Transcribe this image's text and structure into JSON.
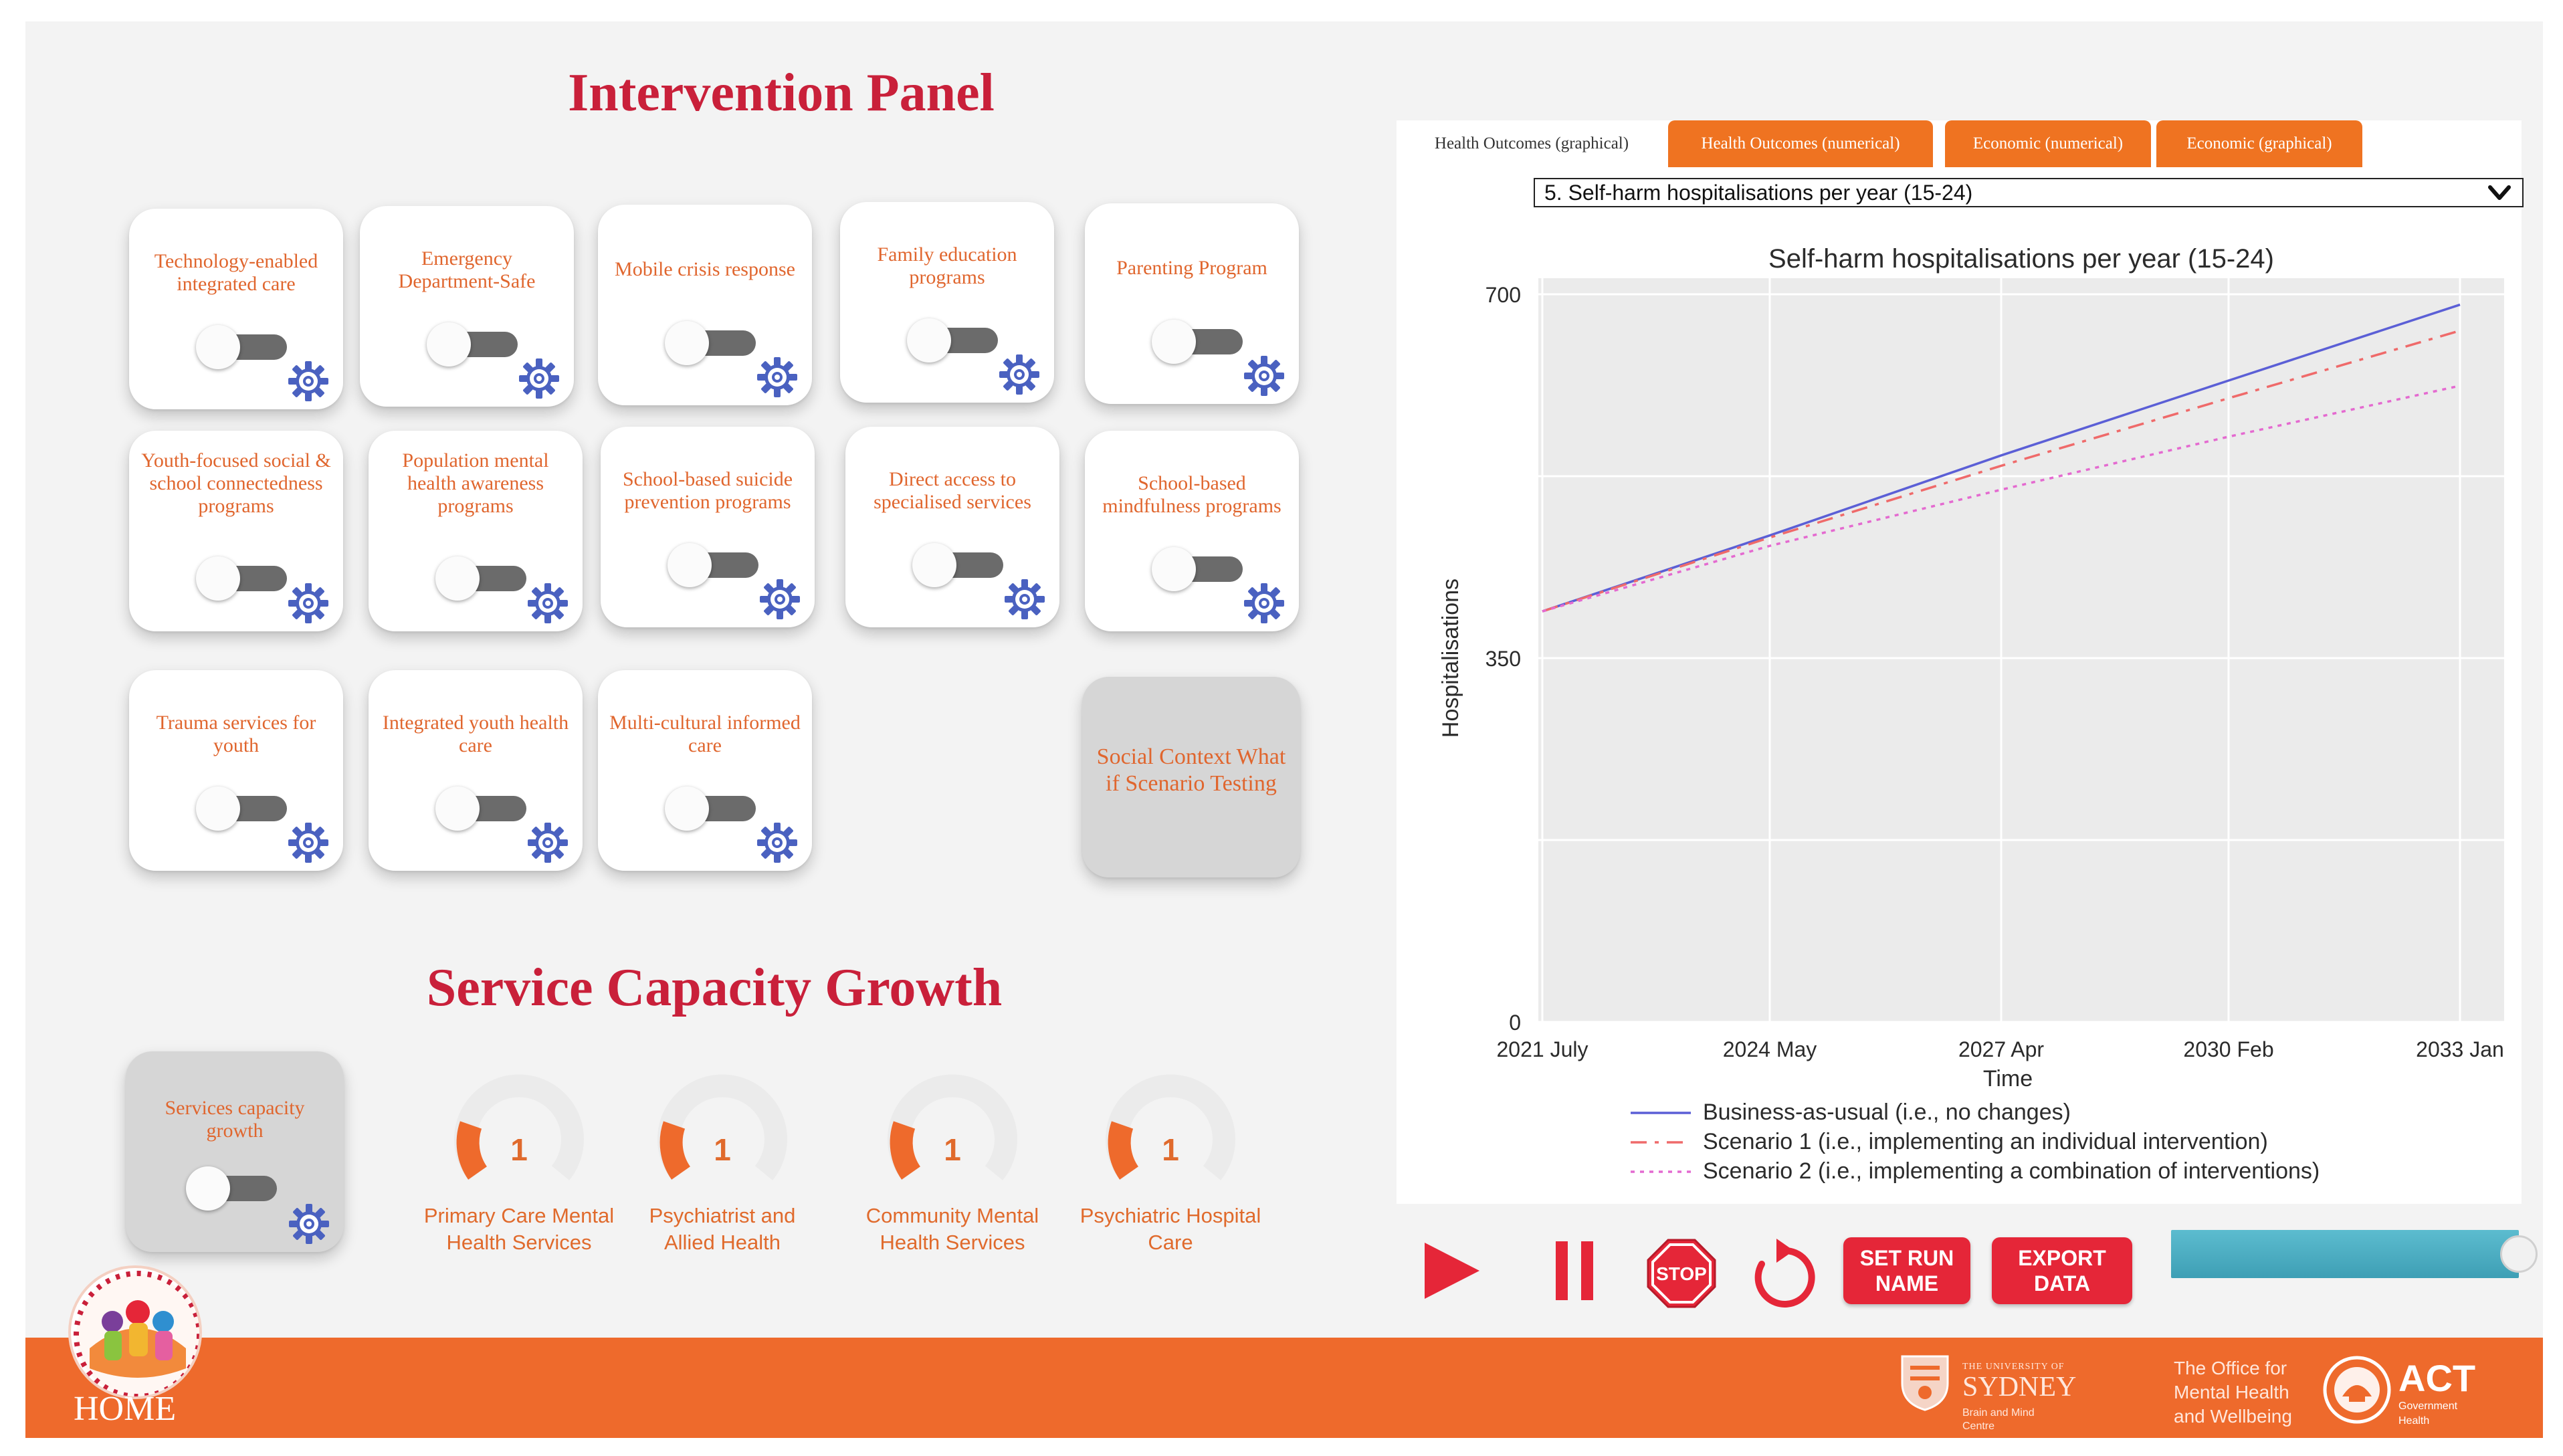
{
  "intervention_panel": {
    "title": "Intervention Panel",
    "cards": [
      {
        "label": "Technology-enabled integrated care",
        "enabled": false
      },
      {
        "label": "Emergency Department-Safe",
        "enabled": false
      },
      {
        "label": "Mobile crisis response",
        "enabled": false
      },
      {
        "label": "Family education programs",
        "enabled": false
      },
      {
        "label": "Parenting Program",
        "enabled": false
      },
      {
        "label": "Youth-focused social & school connectedness programs",
        "enabled": false
      },
      {
        "label": "Population mental health awareness programs",
        "enabled": false
      },
      {
        "label": "School-based suicide prevention programs",
        "enabled": false
      },
      {
        "label": "Direct access to specialised services",
        "enabled": false
      },
      {
        "label": "School-based mindfulness programs",
        "enabled": false
      },
      {
        "label": "Trauma services for youth",
        "enabled": false
      },
      {
        "label": "Integrated youth health care",
        "enabled": false
      },
      {
        "label": "Multi-cultural informed care",
        "enabled": false
      }
    ],
    "social_context": {
      "label": "Social Context What if Scenario Testing"
    }
  },
  "service_capacity": {
    "title": "Service Capacity Growth",
    "toggle_card": {
      "label": "Services capacity growth",
      "enabled": false
    },
    "gauges": [
      {
        "value": "1",
        "label": "Primary Care Mental Health Services"
      },
      {
        "value": "1",
        "label": "Psychiatrist and Allied Health"
      },
      {
        "value": "1",
        "label": "Community Mental Health Services"
      },
      {
        "value": "1",
        "label": "Psychiatric Hospital Care"
      }
    ]
  },
  "tabs": [
    {
      "label": "Health Outcomes (graphical)",
      "active": true
    },
    {
      "label": "Health Outcomes (numerical)",
      "active": false
    },
    {
      "label": "Economic (numerical)",
      "active": false
    },
    {
      "label": "Economic (graphical)",
      "active": false
    }
  ],
  "metric_select": {
    "selected": "5. Self-harm hospitalisations per year (15-24)"
  },
  "chart_data": {
    "type": "line",
    "title": "Self-harm hospitalisations per year (15-24)",
    "xlabel": "Time",
    "ylabel": "Hospitalisations",
    "x_ticks": [
      "2021 July",
      "2024 May",
      "2027 Apr",
      "2030 Feb",
      "2033 Jan"
    ],
    "y_ticks": [
      0,
      350,
      700
    ],
    "ylim": [
      0,
      700
    ],
    "x": [
      2021.5,
      2024.35,
      2027.25,
      2030.1,
      2033.0
    ],
    "series": [
      {
        "name": "Business-as-usual (i.e., no changes)",
        "color": "#5b5fd6",
        "dash": "solid",
        "values": [
          395,
          468,
          545,
          617,
          690
        ]
      },
      {
        "name": "Scenario 1 (i.e., implementing an individual intervention)",
        "color": "#ef6a6a",
        "dash": "dashdot",
        "values": [
          395,
          466,
          535,
          600,
          665
        ]
      },
      {
        "name": "Scenario 2 (i.e., implementing a combination of interventions)",
        "color": "#e46ad0",
        "dash": "dot",
        "values": [
          395,
          458,
          512,
          563,
          612
        ]
      }
    ],
    "legend_position": "bottom",
    "grid": true
  },
  "controls": {
    "play": "play-icon",
    "pause": "pause-icon",
    "stop": "STOP",
    "reset": "reset-icon",
    "set_run_name": "SET RUN NAME",
    "export_data": "EXPORT DATA",
    "speed_level": 0.95
  },
  "footer": {
    "home": "HOME",
    "sydney_line1": "THE UNIVERSITY OF",
    "sydney_line2": "SYDNEY",
    "brain_mind_line1": "Brain and Mind",
    "brain_mind_line2": "Centre",
    "office_line1": "The Office for",
    "office_line2": "Mental Health",
    "office_line3": "and Wellbeing",
    "act": "ACT",
    "act_sub1": "Government",
    "act_sub2": "Health"
  },
  "colors": {
    "accent_red": "#c9203a",
    "orange": "#ee6a2c",
    "tab_orange": "#ef7321",
    "button_red": "#e52638",
    "slider_teal": "#4aaec2"
  }
}
